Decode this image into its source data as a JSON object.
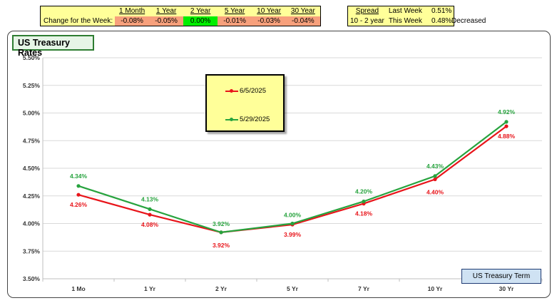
{
  "change_table": {
    "row_label": "Change for the Week:",
    "columns": [
      "1 Month",
      "1 Year",
      "2 Year",
      "5 Year",
      "10 Year",
      "30 Year"
    ],
    "values": [
      "-0.08%",
      "-0.05%",
      "0.00%",
      "-0.01%",
      "-0.03%",
      "-0.04%"
    ]
  },
  "spread_table": {
    "header": "Spread",
    "row1_label": "Last Week",
    "row1_value": "0.51%",
    "row2_label": "10 - 2 year",
    "row2_sublabel": "This Week",
    "row2_value": "0.48%",
    "status": "Decreased"
  },
  "colors": {
    "series_red": "#e8141a",
    "series_green": "#27a33e",
    "negative_cell": "#f7a07c",
    "zero_cell": "#00ee00",
    "panel_yellow": "#ffff99"
  },
  "chart_data": {
    "type": "line",
    "title": "US Treasury Rates",
    "xlabel": "US Treasury Term",
    "ylabel": "",
    "categories": [
      "1 Mo",
      "1 Yr",
      "2 Yr",
      "5 Yr",
      "7 Yr",
      "10 Yr",
      "30 Yr"
    ],
    "ylim": [
      3.5,
      5.5
    ],
    "yticks": [
      "3.50%",
      "3.75%",
      "4.00%",
      "4.25%",
      "4.50%",
      "4.75%",
      "5.00%",
      "5.25%",
      "5.50%"
    ],
    "grid": true,
    "legend_position": "top-center",
    "series": [
      {
        "name": "6/5/2025",
        "color": "#e8141a",
        "values": [
          4.26,
          4.08,
          3.92,
          3.99,
          4.18,
          4.4,
          4.88
        ],
        "labels": [
          "4.26%",
          "4.08%",
          "3.92%",
          "3.99%",
          "4.18%",
          "4.40%",
          "4.88%"
        ]
      },
      {
        "name": "5/29/2025",
        "color": "#27a33e",
        "values": [
          4.34,
          4.13,
          3.92,
          4.0,
          4.2,
          4.43,
          4.92
        ],
        "labels": [
          "4.34%",
          "4.13%",
          "3.92%",
          "4.00%",
          "4.20%",
          "4.43%",
          "4.92%"
        ]
      }
    ]
  }
}
